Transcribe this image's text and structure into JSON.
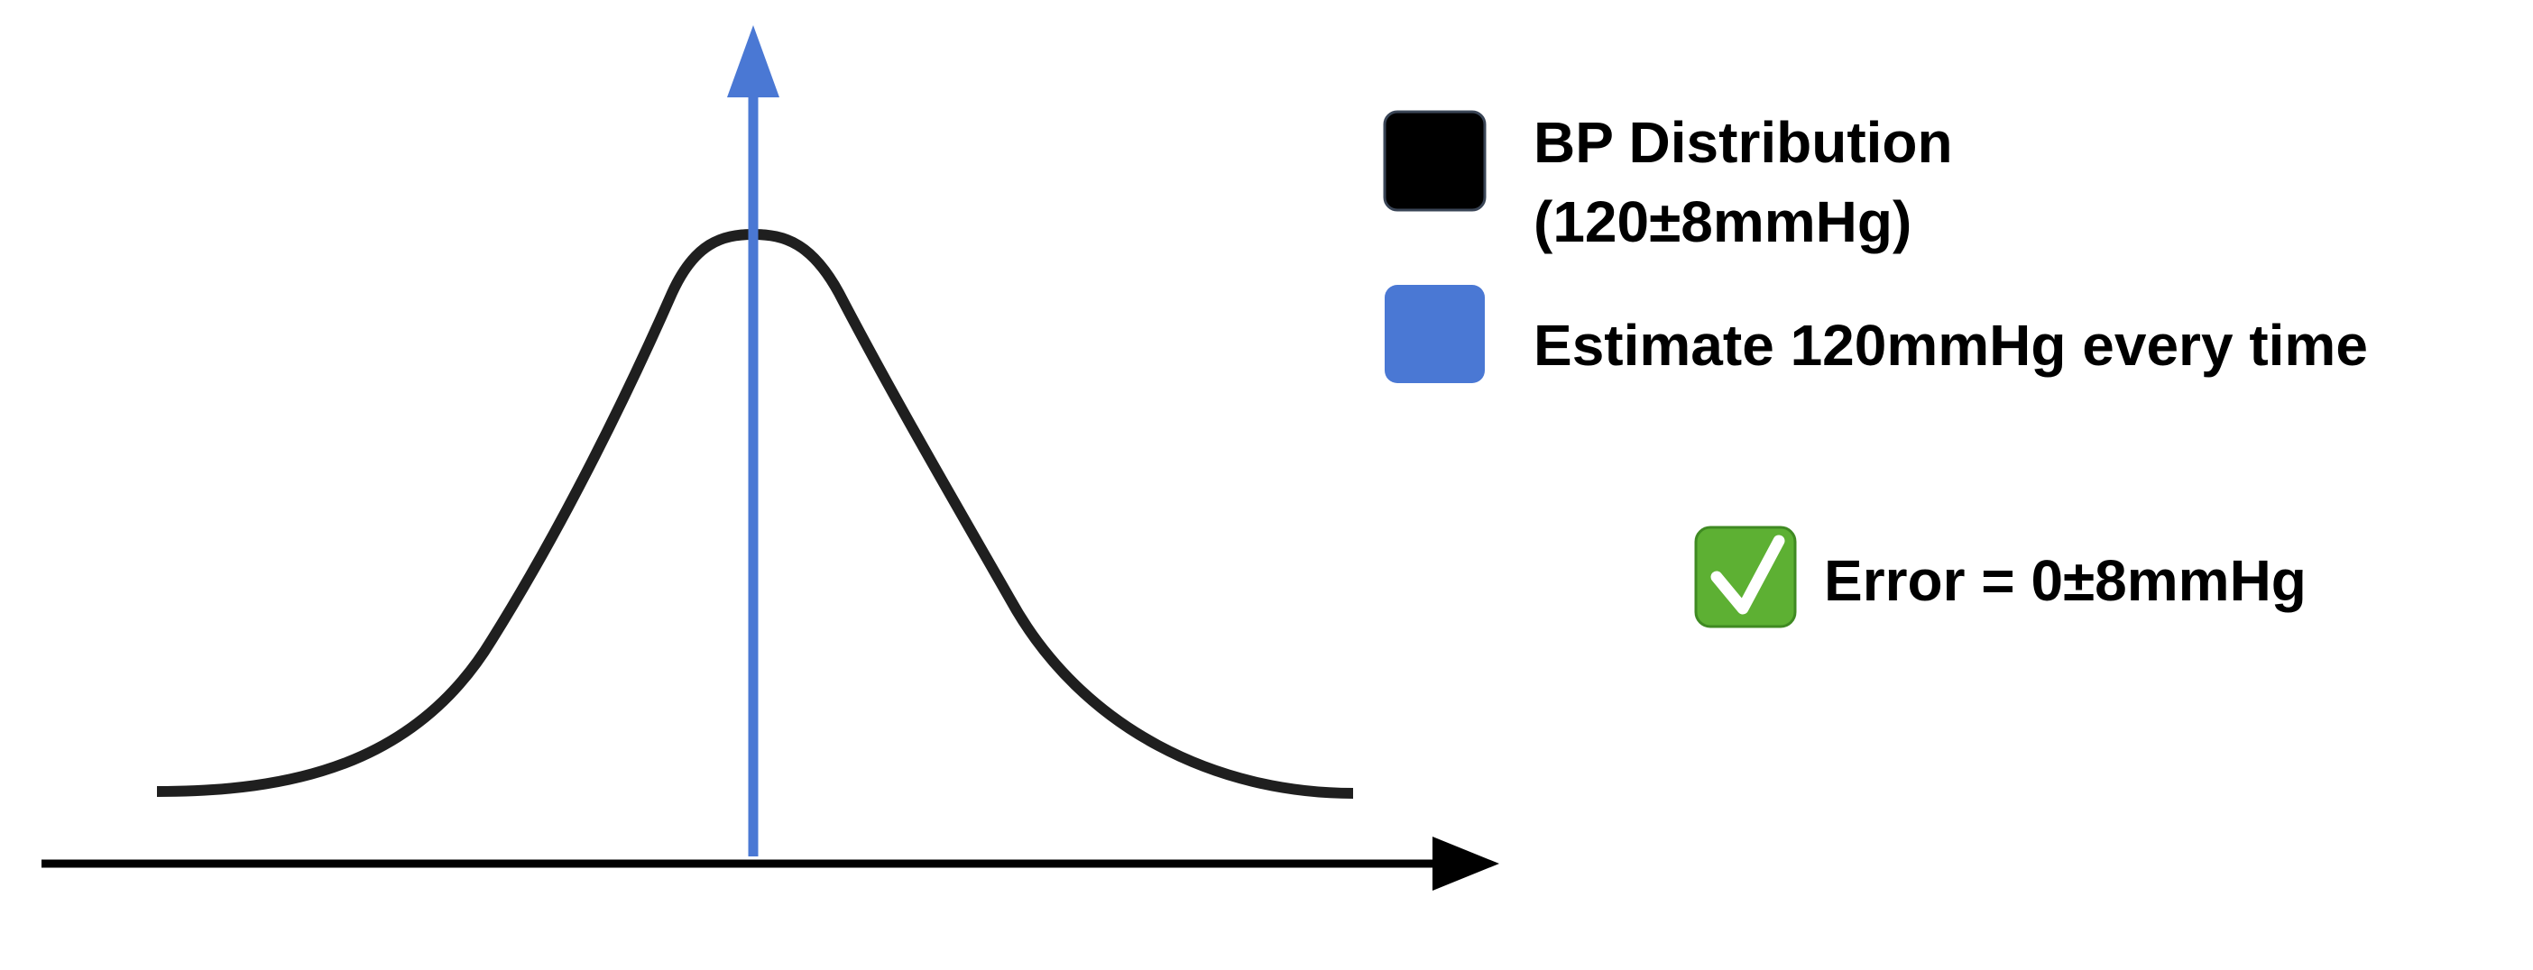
{
  "legend": {
    "items": [
      {
        "name": "distribution",
        "line1": "BP Distribution",
        "line2": "(120±8mmHg)",
        "color": "#000000"
      },
      {
        "name": "estimate",
        "line1": "Estimate 120mmHg every time",
        "color": "#4a78d4"
      }
    ]
  },
  "result": {
    "icon": "check-mark-button-icon",
    "text": "Error = 0±8mmHg",
    "icon_color": "#5db033"
  },
  "colors": {
    "curve": "#1f1f1f",
    "axis": "#000000",
    "estimate_line": "#4a78d4"
  }
}
